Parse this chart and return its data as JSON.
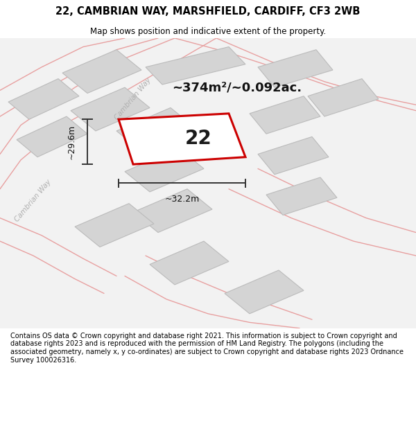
{
  "title": "22, CAMBRIAN WAY, MARSHFIELD, CARDIFF, CF3 2WB",
  "subtitle": "Map shows position and indicative extent of the property.",
  "footer": "Contains OS data © Crown copyright and database right 2021. This information is subject to Crown copyright and database rights 2023 and is reproduced with the permission of HM Land Registry. The polygons (including the associated geometry, namely x, y co-ordinates) are subject to Crown copyright and database rights 2023 Ordnance Survey 100026316.",
  "area_label": "~374m²/~0.092ac.",
  "number_label": "22",
  "dim_h": "~29.6m",
  "dim_w": "~32.2m",
  "road_label_diag": "Cambrian Way",
  "road_label_left": "Cambrian Way",
  "bg_color": "#ffffff",
  "map_bg": "#f0f0f0",
  "road_line_color": "#e8a0a0",
  "building_fill": "#d4d4d4",
  "building_edge": "#c0c0c0",
  "highlight_poly_color": "#cc0000",
  "highlight_poly_fill": "#ffffff",
  "dim_line_color": "#333333",
  "title_fontsize": 10.5,
  "subtitle_fontsize": 8.5,
  "footer_fontsize": 7.0,
  "area_fontsize": 13,
  "number_fontsize": 20,
  "dim_fontsize": 9,
  "road_label_fontsize": 7.5
}
